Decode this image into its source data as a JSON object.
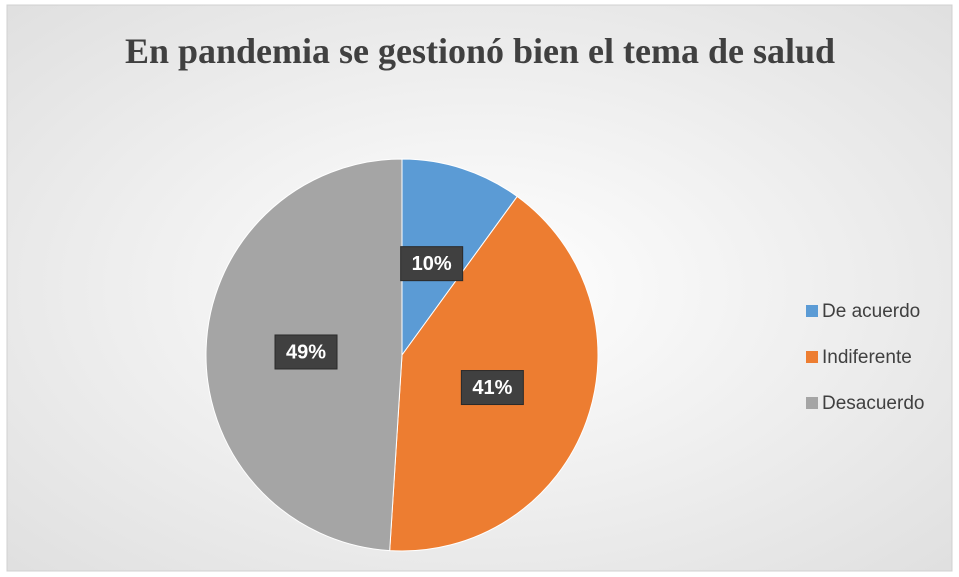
{
  "chart_data": {
    "type": "pie",
    "title": "En pandemia se gestionó bien el tema de salud",
    "categories": [
      "De acuerdo",
      "Indiferente",
      "Desacuerdo"
    ],
    "values": [
      10,
      41,
      49
    ],
    "value_labels": [
      "10%",
      "41%",
      "49%"
    ],
    "colors": [
      "#5b9bd5",
      "#ed7d31",
      "#a5a5a5"
    ],
    "legend": "right"
  }
}
